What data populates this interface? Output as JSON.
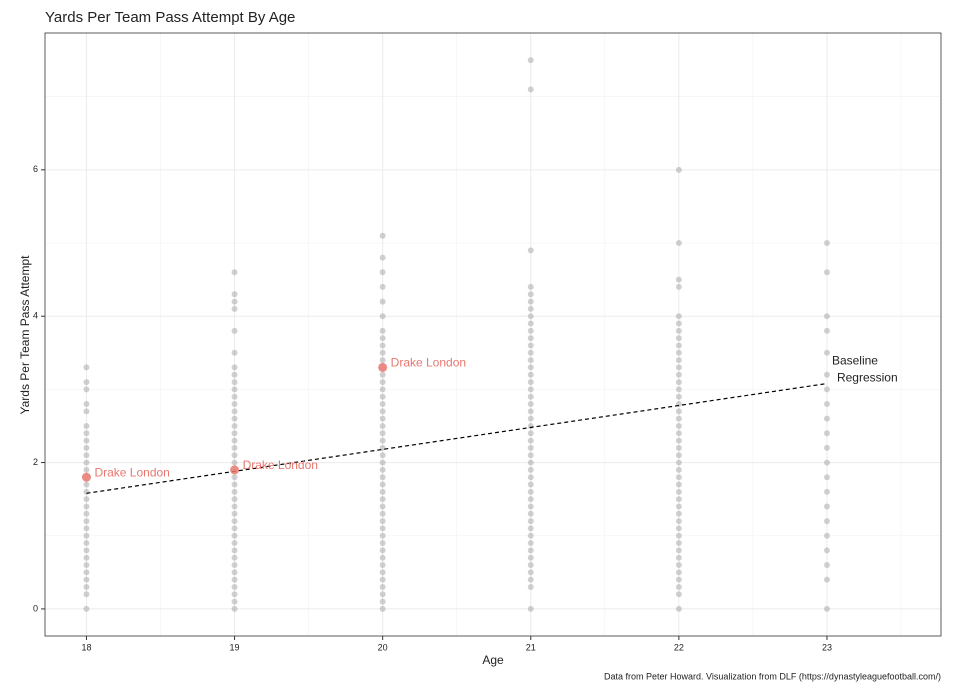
{
  "chart_data": {
    "type": "scatter",
    "title": "Yards Per Team Pass Attempt By Age",
    "x_label": "Age",
    "y_label": "Yards Per Team Pass Attempt",
    "caption": "Data from Peter Howard. Visualization from DLF (https://dynastyleaguefootball.com/)",
    "xlim": [
      17.72,
      23.77
    ],
    "ylim": [
      -0.37,
      7.87
    ],
    "xticks": [
      18,
      19,
      20,
      21,
      22,
      23
    ],
    "yticks": [
      0,
      2,
      4,
      6
    ],
    "grid": true,
    "point_color": "#9a9a9a",
    "columns": [
      {
        "x": 18,
        "values": [
          0,
          0.2,
          0.3,
          0.4,
          0.5,
          0.6,
          0.7,
          0.8,
          0.9,
          1.0,
          1.1,
          1.2,
          1.3,
          1.4,
          1.5,
          1.6,
          1.7,
          1.9,
          2.0,
          2.1,
          2.2,
          2.3,
          2.4,
          2.5,
          2.7,
          2.8,
          3.0,
          3.1,
          3.3
        ]
      },
      {
        "x": 19,
        "values": [
          0,
          0.1,
          0.2,
          0.3,
          0.4,
          0.5,
          0.6,
          0.7,
          0.8,
          0.9,
          1.0,
          1.1,
          1.2,
          1.3,
          1.4,
          1.5,
          1.6,
          1.7,
          1.8,
          2.0,
          2.1,
          2.2,
          2.3,
          2.4,
          2.5,
          2.6,
          2.7,
          2.8,
          2.9,
          3.0,
          3.1,
          3.2,
          3.3,
          3.5,
          3.8,
          4.1,
          4.2,
          4.3,
          4.6
        ]
      },
      {
        "x": 20,
        "values": [
          0,
          0.1,
          0.2,
          0.3,
          0.4,
          0.5,
          0.6,
          0.7,
          0.8,
          0.9,
          1.0,
          1.1,
          1.2,
          1.3,
          1.4,
          1.5,
          1.6,
          1.7,
          1.8,
          1.9,
          2.0,
          2.1,
          2.2,
          2.3,
          2.4,
          2.5,
          2.6,
          2.7,
          2.8,
          2.9,
          3.0,
          3.1,
          3.2,
          3.4,
          3.5,
          3.6,
          3.7,
          3.8,
          4.0,
          4.2,
          4.4,
          4.6,
          4.8,
          5.1
        ]
      },
      {
        "x": 21,
        "values": [
          0,
          0.3,
          0.4,
          0.5,
          0.6,
          0.7,
          0.8,
          0.9,
          1.0,
          1.1,
          1.2,
          1.3,
          1.4,
          1.5,
          1.6,
          1.7,
          1.8,
          1.9,
          2.0,
          2.1,
          2.2,
          2.3,
          2.4,
          2.5,
          2.6,
          2.7,
          2.8,
          2.9,
          3.0,
          3.1,
          3.2,
          3.3,
          3.4,
          3.5,
          3.6,
          3.7,
          3.8,
          3.9,
          4.0,
          4.1,
          4.2,
          4.3,
          4.4,
          4.9,
          7.1,
          7.5
        ]
      },
      {
        "x": 22,
        "values": [
          0,
          0.2,
          0.3,
          0.4,
          0.5,
          0.6,
          0.7,
          0.8,
          0.9,
          1.0,
          1.1,
          1.2,
          1.3,
          1.4,
          1.5,
          1.6,
          1.7,
          1.8,
          1.9,
          2.0,
          2.1,
          2.2,
          2.3,
          2.4,
          2.5,
          2.6,
          2.7,
          2.8,
          2.9,
          3.0,
          3.1,
          3.2,
          3.3,
          3.4,
          3.5,
          3.6,
          3.7,
          3.8,
          3.9,
          4.0,
          4.4,
          4.5,
          5.0,
          6.0
        ]
      },
      {
        "x": 23,
        "values": [
          0,
          0.4,
          0.6,
          0.8,
          1.0,
          1.2,
          1.4,
          1.6,
          1.8,
          2.0,
          2.2,
          2.4,
          2.6,
          2.8,
          3.0,
          3.2,
          3.5,
          3.8,
          4.0,
          4.6,
          5.0
        ]
      }
    ],
    "highlight": {
      "color": "#e8776f",
      "labels": [
        "Drake London",
        "Drake London",
        "Drake London"
      ],
      "x": [
        18,
        19,
        20
      ],
      "y": [
        1.8,
        1.9,
        3.3
      ]
    },
    "regression": {
      "color": "#000000",
      "x": [
        18,
        23
      ],
      "y": [
        1.58,
        3.08
      ],
      "labels": [
        "Baseline",
        "Regression"
      ]
    }
  }
}
